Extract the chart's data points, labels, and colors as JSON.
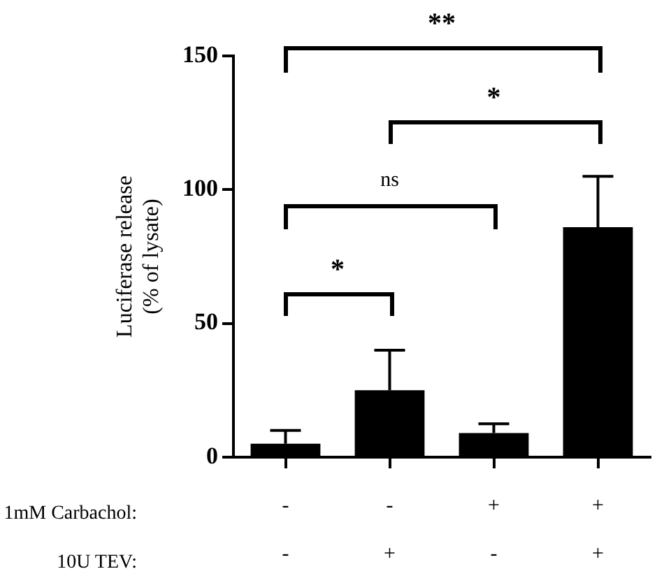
{
  "chart_data": {
    "type": "bar",
    "ylabel": "Luciferase release\n(% of lysate)",
    "categories": [
      "-\n-",
      "-\n+",
      "+\n-",
      "+\n+"
    ],
    "values": [
      5,
      25,
      9,
      86
    ],
    "errors": [
      [
        5,
        10
      ],
      [
        25,
        40
      ],
      [
        9,
        12.5
      ],
      [
        86,
        105
      ]
    ],
    "color": "#000000",
    "ylim": [
      0,
      150
    ],
    "yticks": [
      0,
      50,
      100,
      150
    ],
    "grid": false,
    "legend": false,
    "annotations": [
      "*",
      "ns",
      "*",
      "**",
      "1mM Carbachol:",
      "10U TEV:"
    ]
  }
}
